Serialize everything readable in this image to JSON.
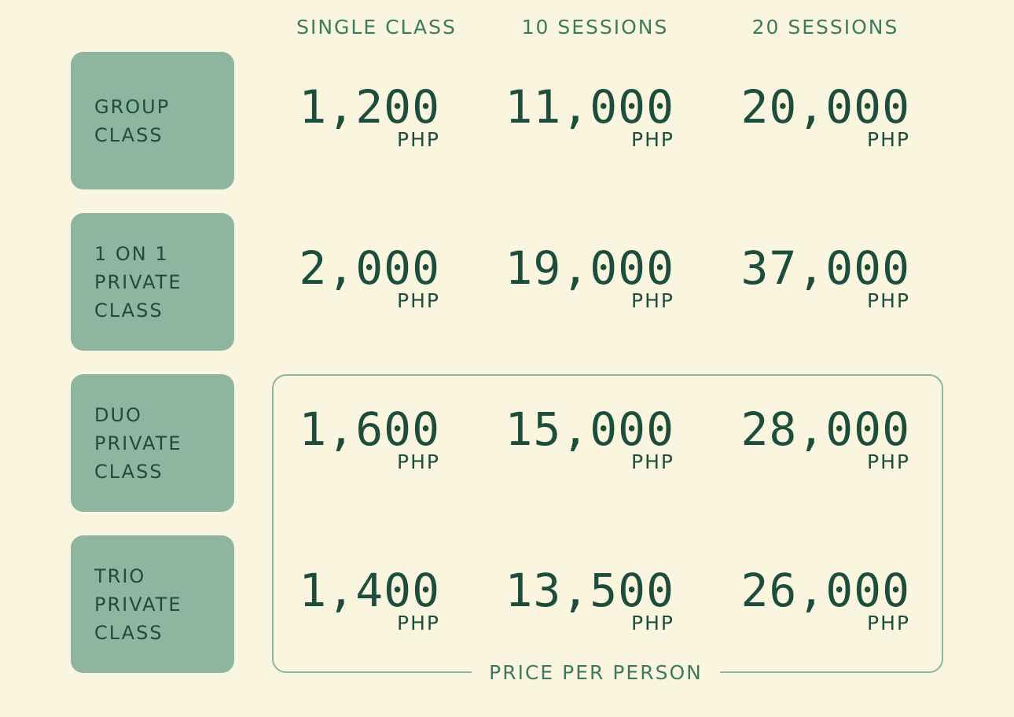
{
  "columns": [
    "SINGLE CLASS",
    "10 SESSIONS",
    "20 SESSIONS"
  ],
  "currency": "PHP",
  "rows": [
    {
      "label": [
        "GROUP",
        "CLASS"
      ],
      "prices": [
        "1,200",
        "11,000",
        "20,000"
      ]
    },
    {
      "label": [
        "1 ON 1",
        "PRIVATE",
        "CLASS"
      ],
      "prices": [
        "2,000",
        "19,000",
        "37,000"
      ]
    },
    {
      "label": [
        "DUO",
        "PRIVATE",
        "CLASS"
      ],
      "prices": [
        "1,600",
        "15,000",
        "28,000"
      ]
    },
    {
      "label": [
        "TRIO",
        "PRIVATE",
        "CLASS"
      ],
      "prices": [
        "1,400",
        "13,500",
        "26,000"
      ]
    }
  ],
  "group_label": "PRICE PER PERSON",
  "colors": {
    "background": "#f9f5de",
    "box": "#8db5a0",
    "text": "#1d4d3c",
    "accent": "#3d7a62"
  }
}
